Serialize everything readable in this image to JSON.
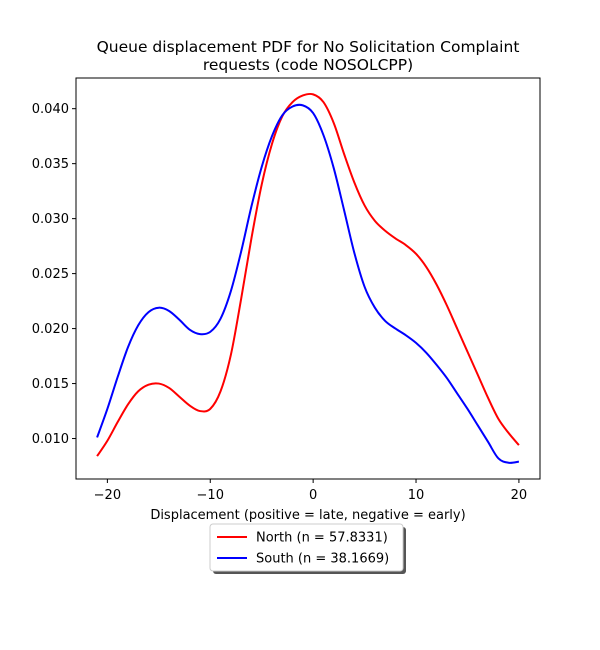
{
  "chart_data": {
    "type": "line",
    "title_lines": [
      "Queue displacement PDF for No Solicitation Complaint",
      "requests (code NOSOLCPP)"
    ],
    "xlabel": "Displacement (positive = late, negative = early)",
    "ylabel": "",
    "xlim": [
      -23.05,
      22.05
    ],
    "ylim": [
      0.00632,
      0.04279
    ],
    "xticks": [
      -20,
      -10,
      0,
      10,
      20
    ],
    "xtick_labels": [
      "−20",
      "−10",
      "0",
      "10",
      "20"
    ],
    "yticks": [
      0.01,
      0.015,
      0.02,
      0.025,
      0.03,
      0.035,
      0.04
    ],
    "ytick_labels": [
      "0.010",
      "0.015",
      "0.020",
      "0.025",
      "0.030",
      "0.035",
      "0.040"
    ],
    "grid": false,
    "legend_position": "below plot, centered",
    "series": [
      {
        "name": "North (n = 57.8331)",
        "color": "#ff0000",
        "x": [
          -21,
          -20,
          -19,
          -18,
          -17,
          -16,
          -15,
          -14,
          -13,
          -12,
          -11,
          -10,
          -9,
          -8,
          -7,
          -6,
          -5,
          -4,
          -3,
          -2,
          -1,
          0,
          1,
          2,
          3,
          4,
          5,
          6,
          7,
          8,
          9,
          10,
          11,
          12,
          13,
          14,
          15,
          16,
          17,
          18,
          19,
          20
        ],
        "y": [
          0.0084,
          0.0098,
          0.0115,
          0.0131,
          0.0143,
          0.0149,
          0.015,
          0.0146,
          0.0138,
          0.013,
          0.0125,
          0.0127,
          0.0143,
          0.0176,
          0.0227,
          0.0282,
          0.0331,
          0.0368,
          0.0393,
          0.0406,
          0.0412,
          0.0413,
          0.0406,
          0.0387,
          0.0359,
          0.0333,
          0.0312,
          0.0298,
          0.0289,
          0.0282,
          0.0276,
          0.0268,
          0.0256,
          0.024,
          0.0221,
          0.02,
          0.0179,
          0.0158,
          0.0137,
          0.0118,
          0.0105,
          0.0094
        ]
      },
      {
        "name": "South (n = 38.1669)",
        "color": "#0000ff",
        "x": [
          -21,
          -20,
          -19,
          -18,
          -17,
          -16,
          -15,
          -14,
          -13,
          -12,
          -11,
          -10,
          -9,
          -8,
          -7,
          -6,
          -5,
          -4,
          -3,
          -2,
          -1,
          0,
          1,
          2,
          3,
          4,
          5,
          6,
          7,
          8,
          9,
          10,
          11,
          12,
          13,
          14,
          15,
          16,
          17,
          18,
          19,
          20
        ],
        "y": [
          0.0101,
          0.0127,
          0.0156,
          0.0183,
          0.0203,
          0.0215,
          0.0219,
          0.0216,
          0.0208,
          0.0199,
          0.0195,
          0.0197,
          0.0209,
          0.0234,
          0.027,
          0.0311,
          0.0347,
          0.0375,
          0.0394,
          0.0402,
          0.0403,
          0.0396,
          0.0376,
          0.0346,
          0.0308,
          0.0269,
          0.0238,
          0.0219,
          0.0207,
          0.02,
          0.0194,
          0.0187,
          0.0178,
          0.0167,
          0.0155,
          0.0141,
          0.0127,
          0.0112,
          0.0097,
          0.0082,
          0.0078,
          0.0079
        ]
      }
    ]
  }
}
